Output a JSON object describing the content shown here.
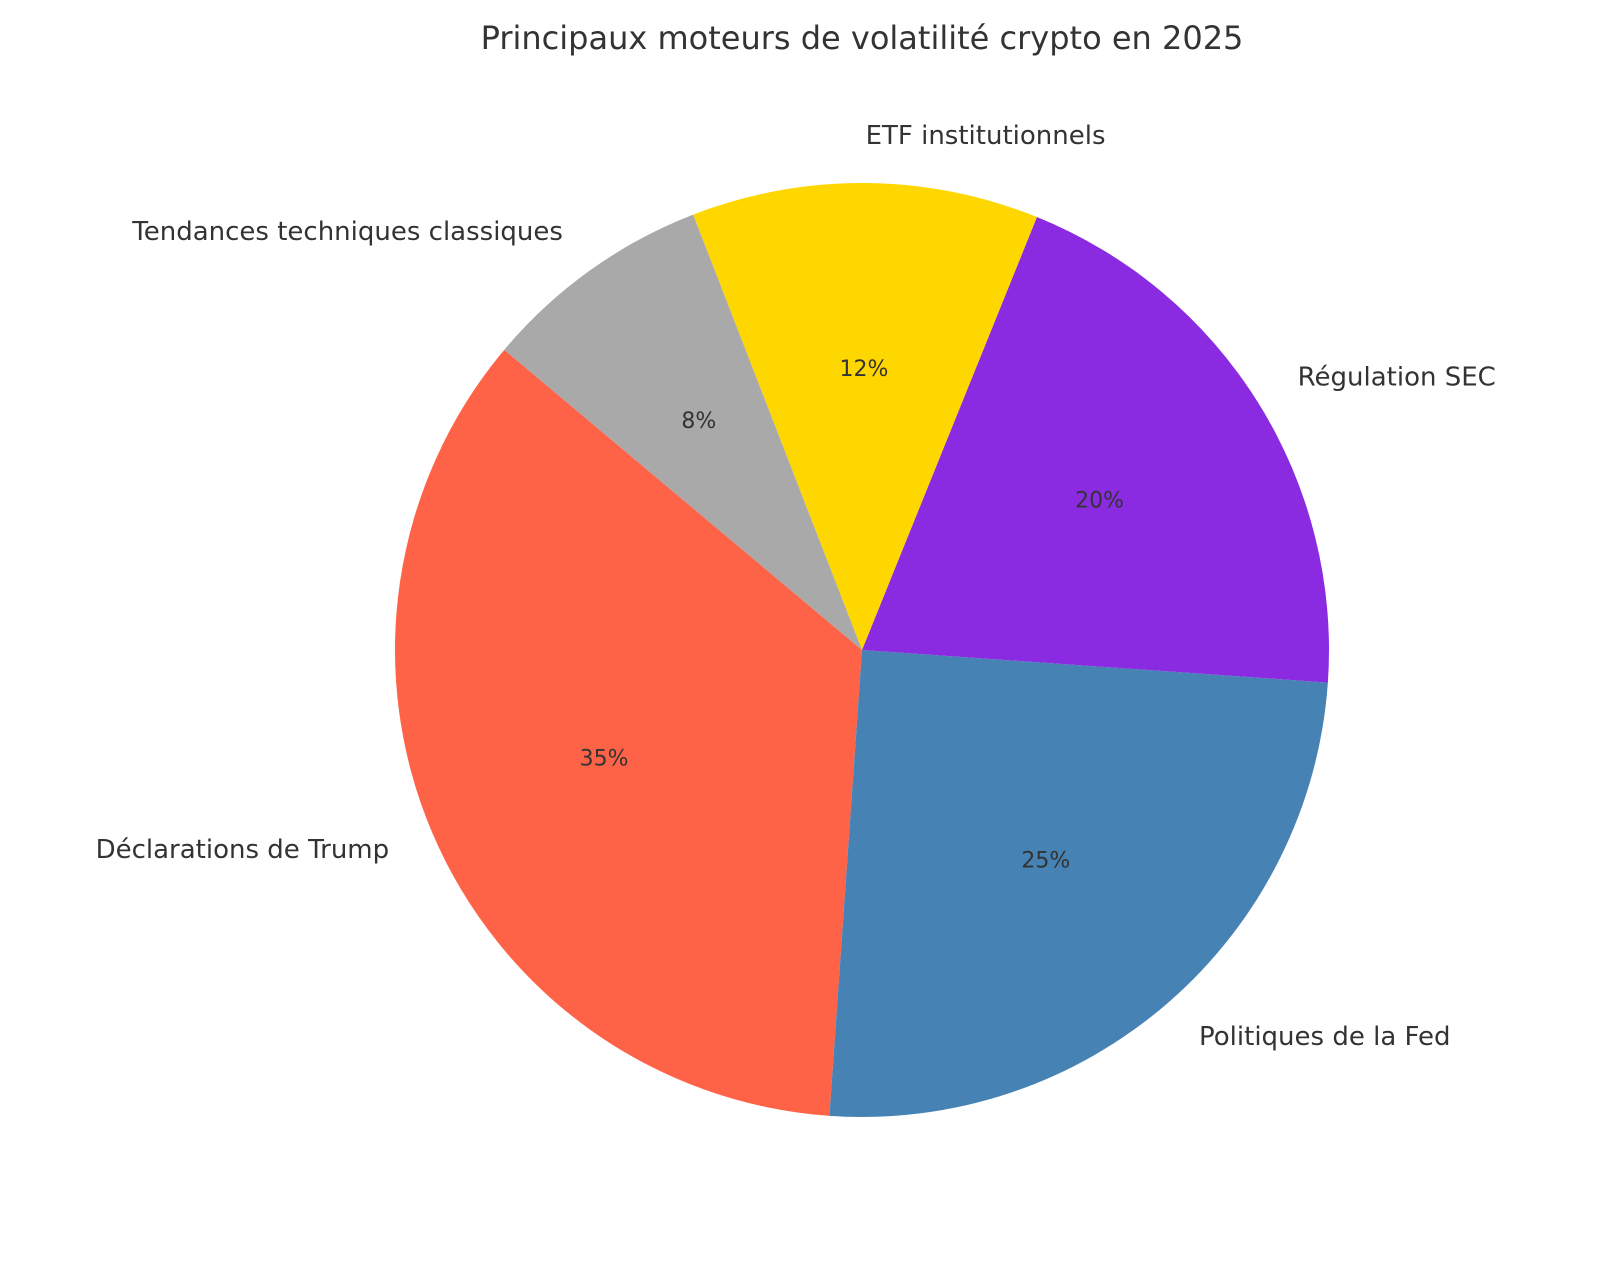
{
  "chart_data": {
    "type": "pie",
    "title": "Principaux moteurs de volatilité crypto en 2025",
    "categories": [
      "Déclarations de Trump",
      "Politiques de la Fed",
      "Régulation SEC",
      "ETF institutionnels",
      "Tendances techniques classiques"
    ],
    "values": [
      35,
      25,
      20,
      12,
      8
    ],
    "value_labels": [
      "35%",
      "25%",
      "20%",
      "12%",
      "8%"
    ],
    "colors": [
      "#FF6347",
      "#4682B4",
      "#8A2BE2",
      "#FFD700",
      "#A9A9A9"
    ]
  }
}
